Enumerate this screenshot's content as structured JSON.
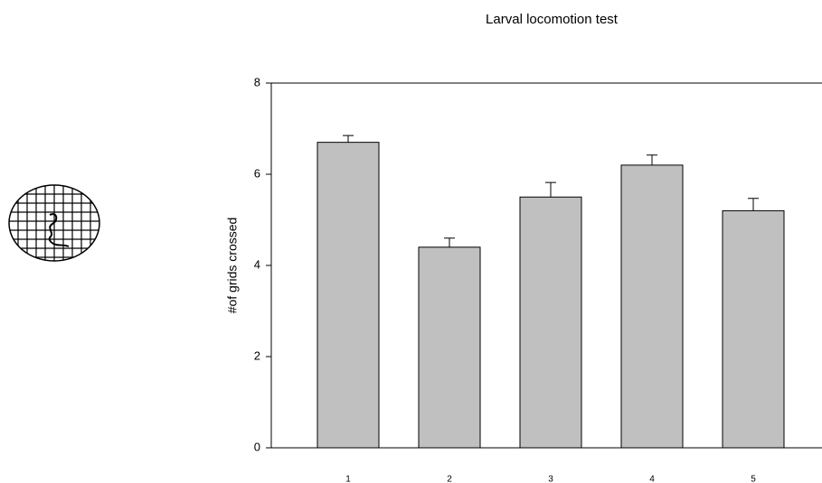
{
  "chart_data": {
    "type": "bar",
    "title": "Larval locomotion test",
    "ylabel": "#of grids crossed",
    "categories": [
      "1",
      "2",
      "3",
      "4",
      "5"
    ],
    "values": [
      6.7,
      4.4,
      5.5,
      6.2,
      5.2
    ],
    "errors": [
      0.15,
      0.2,
      0.32,
      0.22,
      0.27
    ],
    "color": "#c0c0c0",
    "ylim": [
      0,
      8
    ],
    "yticks": [
      0,
      2,
      4,
      6,
      8
    ]
  }
}
